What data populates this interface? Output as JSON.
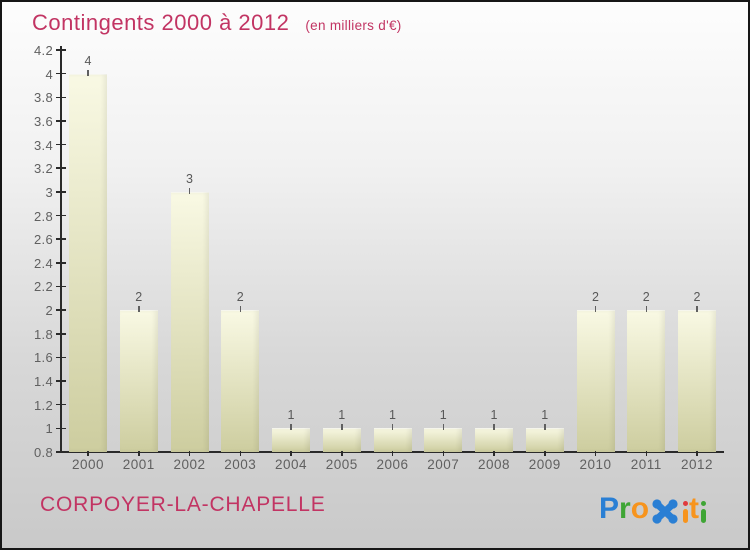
{
  "chart_data": {
    "type": "bar",
    "title": "Contingents 2000 à 2012",
    "subtitle": "(en milliers d'€)",
    "categories": [
      "2000",
      "2001",
      "2002",
      "2003",
      "2004",
      "2005",
      "2006",
      "2007",
      "2008",
      "2009",
      "2010",
      "2011",
      "2012"
    ],
    "values": [
      4,
      2,
      3,
      2,
      1,
      1,
      1,
      1,
      1,
      1,
      2,
      2,
      2
    ],
    "bar_value_labels": [
      "4",
      "2",
      "3",
      "2",
      "1",
      "1",
      "1",
      "1",
      "1",
      "1",
      "2",
      "2",
      "2"
    ],
    "xlabel": "",
    "ylabel": "",
    "ylim": [
      0.8,
      4.2
    ],
    "ytick_step": 0.2,
    "grid": false,
    "legend": false,
    "bar_color_top": "#f9f9e4",
    "bar_color_bottom": "#cdcd9f"
  },
  "theme": {
    "accent_pink": "#c23463",
    "axis_color": "#2a2a2a",
    "tick_label_color": "#606060",
    "value_label_color": "#585858"
  },
  "footer": {
    "place_name": "CORPOYER-LA-CHAPELLE",
    "logo": {
      "name": "Proxiti",
      "letters": [
        {
          "ch": "P",
          "color": "#2a7fd4"
        },
        {
          "ch": "r",
          "color": "#3fa535"
        },
        {
          "ch": "o",
          "color": "#f7941d"
        },
        {
          "ch": "X",
          "color": "#2a7fd4",
          "style": "x-mark"
        },
        {
          "ch": "i",
          "color": "#f7941d",
          "dot_color": "#e03a3e"
        },
        {
          "ch": "t",
          "color": "#f7941d"
        },
        {
          "ch": "i",
          "color": "#3fa535",
          "dot_color": "#3fa535"
        }
      ]
    }
  }
}
